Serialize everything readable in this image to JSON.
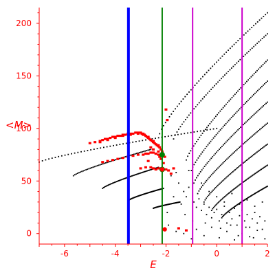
{
  "chart_data": {
    "type": "scatter",
    "title": "",
    "xlabel": "E",
    "ylabel": "<M>",
    "xlim": [
      -7,
      2
    ],
    "ylim": [
      -10,
      215
    ],
    "xticks": [
      -6,
      -4,
      -2,
      0,
      2
    ],
    "yticks": [
      0,
      50,
      100,
      150,
      200
    ],
    "grid": false,
    "colors": {
      "axes": "#ff0000",
      "black_points": "#000000",
      "red_points": "#ff0000",
      "blue_line": "#0000ff",
      "green_line": "#008000",
      "magenta_line": "#cc00cc",
      "green_marker": "#008000"
    },
    "vertical_lines": [
      {
        "x": -3.48,
        "color": "blue"
      },
      {
        "x": -2.15,
        "color": "green"
      },
      {
        "x": -0.95,
        "color": "magenta"
      },
      {
        "x": 1.0,
        "color": "magenta"
      }
    ],
    "black_branches": [
      {
        "x": [
          -7.0,
          0.0
        ],
        "y": [
          68,
          100
        ]
      },
      {
        "x": [
          -5.65,
          -2.6
        ],
        "y": [
          55,
          80
        ]
      },
      {
        "x": [
          -4.5,
          -2.3
        ],
        "y": [
          43,
          63
        ]
      },
      {
        "x": [
          -3.45,
          -2.1
        ],
        "y": [
          32,
          43
        ]
      },
      {
        "x": [
          -2.5,
          -1.45
        ],
        "y": [
          24,
          30
        ]
      },
      {
        "x": [
          -2.25,
          2.0
        ],
        "y": [
          95,
          210
        ]
      },
      {
        "x": [
          -1.7,
          2.0
        ],
        "y": [
          90,
          190
        ]
      },
      {
        "x": [
          -1.2,
          2.0
        ],
        "y": [
          70,
          165
        ]
      },
      {
        "x": [
          -1.0,
          2.0
        ],
        "y": [
          60,
          145
        ]
      },
      {
        "x": [
          -0.9,
          2.0
        ],
        "y": [
          48,
          125
        ]
      },
      {
        "x": [
          -0.75,
          2.0
        ],
        "y": [
          38,
          105
        ]
      },
      {
        "x": [
          -0.5,
          2.0
        ],
        "y": [
          30,
          85
        ]
      },
      {
        "x": [
          -0.2,
          2.0
        ],
        "y": [
          22,
          65
        ]
      },
      {
        "x": [
          0.2,
          2.0
        ],
        "y": [
          15,
          45
        ]
      }
    ],
    "black_scatter": [
      [
        -1.8,
        55
      ],
      [
        -1.6,
        58
      ],
      [
        -1.5,
        48
      ],
      [
        -1.3,
        40
      ],
      [
        -1.2,
        35
      ],
      [
        -1.1,
        44
      ],
      [
        -0.9,
        30
      ],
      [
        -0.8,
        25
      ],
      [
        -0.7,
        33
      ],
      [
        -0.6,
        22
      ],
      [
        -0.5,
        28
      ],
      [
        -0.4,
        18
      ],
      [
        -0.3,
        25
      ],
      [
        -0.2,
        15
      ],
      [
        -0.1,
        20
      ],
      [
        0.0,
        23
      ],
      [
        0.1,
        12
      ],
      [
        0.2,
        18
      ],
      [
        0.3,
        26
      ],
      [
        0.4,
        10
      ],
      [
        0.5,
        20
      ],
      [
        0.6,
        14
      ],
      [
        0.7,
        24
      ],
      [
        0.8,
        8
      ],
      [
        0.9,
        17
      ],
      [
        1.0,
        22
      ],
      [
        1.1,
        12
      ],
      [
        1.2,
        18
      ],
      [
        1.3,
        6
      ],
      [
        1.4,
        14
      ],
      [
        1.5,
        20
      ],
      [
        1.6,
        10
      ],
      [
        1.7,
        16
      ],
      [
        1.8,
        4
      ],
      [
        1.9,
        12
      ],
      [
        -1.9,
        8
      ],
      [
        -1.6,
        2
      ],
      [
        -1.3,
        0
      ],
      [
        -1.0,
        -5
      ],
      [
        -0.8,
        4
      ],
      [
        -0.5,
        -2
      ],
      [
        -0.2,
        6
      ],
      [
        0.1,
        -4
      ],
      [
        0.4,
        2
      ],
      [
        0.7,
        -6
      ],
      [
        1.0,
        0
      ],
      [
        1.3,
        -3
      ],
      [
        1.6,
        3
      ],
      [
        1.9,
        -5
      ],
      [
        -1.4,
        28
      ],
      [
        -1.7,
        35
      ],
      [
        -1.1,
        60
      ],
      [
        -0.6,
        48
      ],
      [
        -0.3,
        40
      ],
      [
        0.0,
        35
      ],
      [
        0.3,
        30
      ],
      [
        0.6,
        38
      ],
      [
        0.9,
        28
      ],
      [
        1.2,
        32
      ],
      [
        1.5,
        26
      ],
      [
        1.8,
        30
      ],
      [
        -1.95,
        20
      ],
      [
        -1.25,
        18
      ],
      [
        -0.95,
        12
      ],
      [
        -0.45,
        10
      ],
      [
        0.15,
        5
      ],
      [
        0.55,
        8
      ],
      [
        0.85,
        -2
      ],
      [
        1.15,
        6
      ],
      [
        1.45,
        -4
      ]
    ],
    "red_points": [
      [
        -5.0,
        86
      ],
      [
        -4.8,
        87
      ],
      [
        -4.6,
        88
      ],
      [
        -4.5,
        89
      ],
      [
        -4.4,
        90
      ],
      [
        -4.3,
        90
      ],
      [
        -4.2,
        91
      ],
      [
        -4.1,
        92
      ],
      [
        -4.0,
        92
      ],
      [
        -3.9,
        93
      ],
      [
        -3.8,
        93
      ],
      [
        -3.7,
        94
      ],
      [
        -3.6,
        94
      ],
      [
        -3.5,
        95
      ],
      [
        -3.4,
        95
      ],
      [
        -3.3,
        95
      ],
      [
        -3.2,
        96
      ],
      [
        -3.1,
        96
      ],
      [
        -3.0,
        96
      ],
      [
        -2.95,
        95
      ],
      [
        -2.9,
        95
      ],
      [
        -2.85,
        94
      ],
      [
        -2.8,
        93
      ],
      [
        -2.75,
        92
      ],
      [
        -2.7,
        91
      ],
      [
        -2.65,
        90
      ],
      [
        -2.6,
        89
      ],
      [
        -2.55,
        88
      ],
      [
        -2.5,
        87
      ],
      [
        -2.45,
        86
      ],
      [
        -2.4,
        85
      ],
      [
        -2.35,
        84
      ],
      [
        -2.3,
        83
      ],
      [
        -2.25,
        82
      ],
      [
        -2.2,
        80
      ],
      [
        -2.15,
        78
      ],
      [
        -4.6,
        87
      ],
      [
        -4.3,
        89
      ],
      [
        -4.0,
        91
      ],
      [
        -3.7,
        93
      ],
      [
        -3.4,
        94
      ],
      [
        -3.1,
        95
      ],
      [
        -2.9,
        94
      ],
      [
        -2.7,
        92
      ],
      [
        -2.5,
        88
      ],
      [
        -2.3,
        84
      ],
      [
        -4.5,
        68
      ],
      [
        -4.3,
        69
      ],
      [
        -4.1,
        70
      ],
      [
        -3.9,
        71
      ],
      [
        -3.7,
        72
      ],
      [
        -3.5,
        73
      ],
      [
        -3.3,
        74
      ],
      [
        -3.1,
        75
      ],
      [
        -2.9,
        75
      ],
      [
        -2.8,
        76
      ],
      [
        -2.7,
        76
      ],
      [
        -2.6,
        77
      ],
      [
        -2.5,
        77
      ],
      [
        -2.4,
        76
      ],
      [
        -2.3,
        75
      ],
      [
        -2.25,
        73
      ],
      [
        -2.2,
        71
      ],
      [
        -3.0,
        62
      ],
      [
        -2.8,
        63
      ],
      [
        -2.6,
        63
      ],
      [
        -2.5,
        62
      ],
      [
        -2.4,
        61
      ],
      [
        -2.3,
        62
      ],
      [
        -2.2,
        62
      ],
      [
        -2.0,
        61
      ],
      [
        -1.9,
        60
      ],
      [
        -1.8,
        57
      ],
      [
        -2.6,
        82
      ],
      [
        -2.5,
        80
      ],
      [
        -2.3,
        78
      ],
      [
        -2.05,
        73
      ],
      [
        -2.0,
        118
      ],
      [
        -1.95,
        108
      ],
      [
        -2.7,
        69
      ],
      [
        -2.1,
        67
      ],
      [
        -1.7,
        62
      ],
      [
        -2.1,
        4
      ],
      [
        -1.5,
        5
      ],
      [
        -1.2,
        3
      ]
    ],
    "green_markers": [
      {
        "x": -2.15,
        "y": 75
      },
      {
        "x": -2.15,
        "y": 61
      }
    ],
    "highlight_markers": [
      {
        "x": -2.15,
        "y": 61,
        "color": "red"
      },
      {
        "x": -2.05,
        "y": 4,
        "color": "red"
      }
    ]
  }
}
